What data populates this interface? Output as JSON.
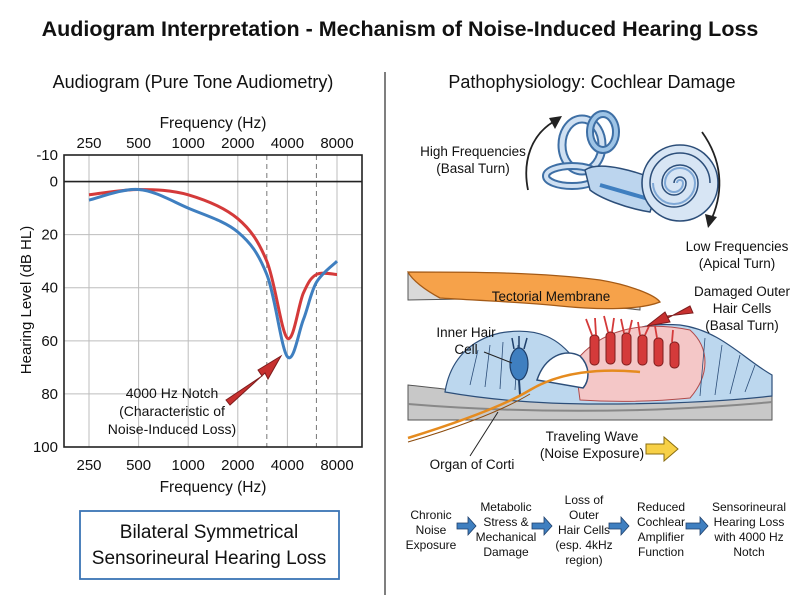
{
  "title": "Audiogram Interpretation - Mechanism of Noise-Induced Hearing Loss",
  "audiogram": {
    "panel_title": "Audiogram (Pure Tone Audiometry)",
    "summary_box": [
      "Bilateral Symmetrical",
      "Sensorineural Hearing Loss"
    ],
    "notch_annotation": [
      "4000 Hz Notch",
      "(Characteristic of",
      "Noise-Induced Loss)"
    ]
  },
  "chart_data": {
    "type": "line",
    "xlabel": "Frequency (Hz)",
    "ylabel": "Hearing Level (dB HL)",
    "x_ticks": [
      "250",
      "500",
      "1000",
      "2000",
      "4000",
      "8000"
    ],
    "y_ticks": [
      "-10",
      "0",
      "20",
      "40",
      "60",
      "80",
      "100"
    ],
    "ylim": [
      -10,
      100
    ],
    "y_inverted": true,
    "x_scale": "log2 (octave)",
    "grid": true,
    "reference_frequencies_dashed": [
      3000,
      6000
    ],
    "series": [
      {
        "color": "#d43a3a",
        "points": [
          [
            250,
            5
          ],
          [
            500,
            3
          ],
          [
            1000,
            5
          ],
          [
            2000,
            14
          ],
          [
            3000,
            30
          ],
          [
            4000,
            59
          ],
          [
            5000,
            42
          ],
          [
            6000,
            35
          ],
          [
            8000,
            35
          ]
        ]
      },
      {
        "color": "#3f7fc0",
        "points": [
          [
            250,
            7
          ],
          [
            500,
            3
          ],
          [
            1000,
            10
          ],
          [
            2000,
            19
          ],
          [
            3000,
            35
          ],
          [
            4000,
            66
          ],
          [
            5000,
            52
          ],
          [
            6000,
            38
          ],
          [
            8000,
            30
          ]
        ]
      }
    ]
  },
  "cochlea": {
    "panel_title": "Pathophysiology: Cochlear Damage",
    "high_freq": [
      "High Frequencies",
      "(Basal Turn)"
    ],
    "low_freq": [
      "Low Frequencies",
      "(Apical Turn)"
    ],
    "tectorial": "Tectorial Membrane",
    "damaged": [
      "Damaged Outer",
      "Hair Cells",
      "(Basal Turn)"
    ],
    "inner_hair": [
      "Inner Hair",
      "Cell"
    ],
    "traveling": [
      "Traveling Wave",
      "(Noise Exposure)"
    ],
    "organ": "Organ of Corti"
  },
  "flow": [
    [
      "Chronic",
      "Noise",
      "Exposure"
    ],
    [
      "Metabolic",
      "Stress &",
      "Mechanical",
      "Damage"
    ],
    [
      "Loss of",
      "Outer",
      "Hair Cells",
      "(esp. 4kHz",
      "region)"
    ],
    [
      "Reduced",
      "Cochlear",
      "Amplifier",
      "Function"
    ],
    [
      "Sensorineural",
      "Hearing Loss",
      "with 4000 Hz",
      "Notch"
    ]
  ],
  "colors": {
    "red": "#d43a3a",
    "blue": "#3f7fc0",
    "orange": "#f6a24a",
    "yellow": "#f7d046",
    "box_border": "#3b74b5"
  }
}
